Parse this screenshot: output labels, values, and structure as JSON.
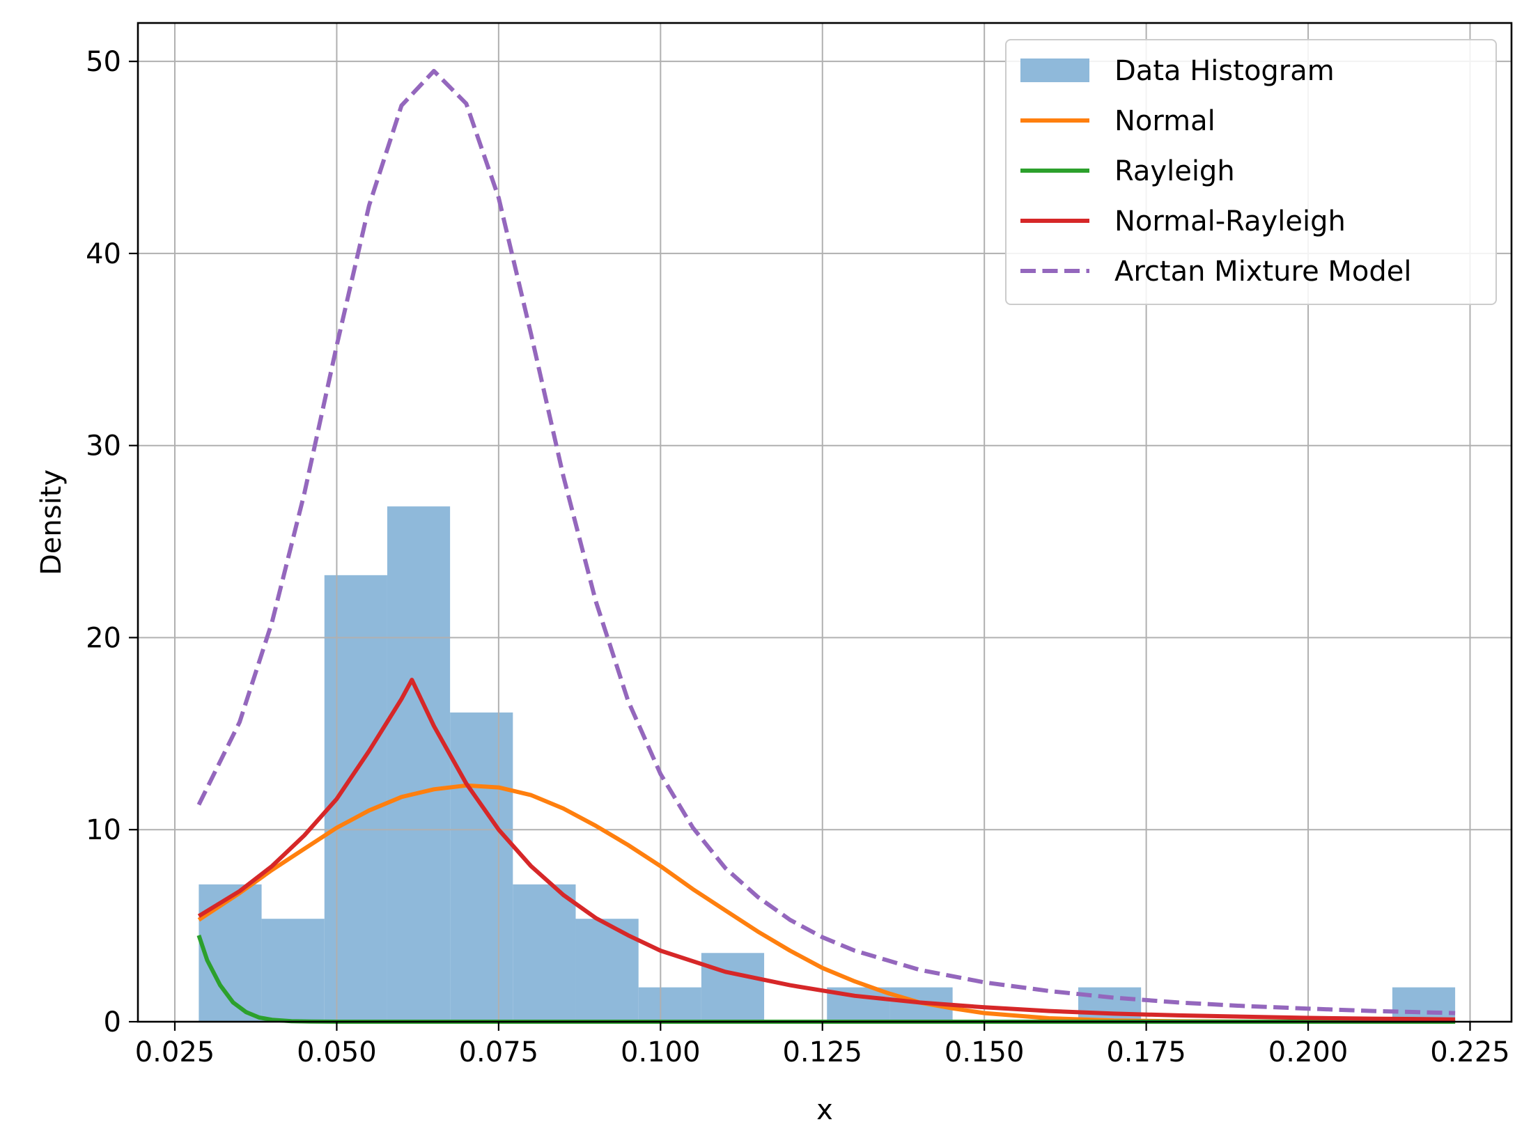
{
  "chart_data": {
    "type": "histogram",
    "title": "",
    "xlabel": "x",
    "ylabel": "Density",
    "xlim": [
      0.0193,
      0.2314
    ],
    "ylim": [
      0,
      52
    ],
    "x_ticks": [
      0.025,
      0.05,
      0.075,
      0.1,
      0.125,
      0.15,
      0.175,
      0.2,
      0.225
    ],
    "x_tick_labels": [
      "0.025",
      "0.050",
      "0.075",
      "0.100",
      "0.125",
      "0.150",
      "0.175",
      "0.200",
      "0.225"
    ],
    "y_ticks": [
      0,
      10,
      20,
      30,
      40,
      50
    ],
    "y_tick_labels": [
      "0",
      "10",
      "20",
      "30",
      "40",
      "50"
    ],
    "grid": true,
    "legend_position": "top-right",
    "histogram": {
      "name": "Data Histogram",
      "color": "#8fb9da",
      "bin_edges": [
        0.0287,
        0.0384,
        0.0481,
        0.0578,
        0.0675,
        0.0772,
        0.0869,
        0.0966,
        0.1063,
        0.116,
        0.1257,
        0.1354,
        0.1451,
        0.1548,
        0.1645,
        0.1742,
        0.1839,
        0.1936,
        0.2033,
        0.213,
        0.2227
      ],
      "densities": [
        7.15,
        5.36,
        23.25,
        26.83,
        16.1,
        7.15,
        5.36,
        1.79,
        3.58,
        0,
        1.79,
        1.79,
        0,
        0,
        1.79,
        0,
        0,
        0,
        0,
        1.79
      ]
    },
    "series": [
      {
        "name": "Normal",
        "color": "#ff7f0e",
        "style": "solid",
        "x": [
          0.0287,
          0.035,
          0.04,
          0.045,
          0.05,
          0.055,
          0.06,
          0.065,
          0.07,
          0.075,
          0.08,
          0.085,
          0.09,
          0.095,
          0.1,
          0.105,
          0.11,
          0.115,
          0.12,
          0.125,
          0.13,
          0.135,
          0.14,
          0.145,
          0.15,
          0.16,
          0.17,
          0.18,
          0.19,
          0.2,
          0.21,
          0.2227
        ],
        "y": [
          5.3,
          6.7,
          7.9,
          9.0,
          10.1,
          11.0,
          11.7,
          12.1,
          12.3,
          12.2,
          11.8,
          11.1,
          10.2,
          9.2,
          8.1,
          6.9,
          5.8,
          4.7,
          3.7,
          2.8,
          2.1,
          1.5,
          1.0,
          0.7,
          0.45,
          0.18,
          0.06,
          0.02,
          0.005,
          0.0,
          0.0,
          0.0
        ]
      },
      {
        "name": "Rayleigh",
        "color": "#2ca02c",
        "style": "solid",
        "x": [
          0.0287,
          0.03,
          0.032,
          0.034,
          0.036,
          0.038,
          0.04,
          0.043,
          0.046,
          0.05,
          0.06,
          0.08,
          0.1,
          0.15,
          0.2,
          0.2227
        ],
        "y": [
          4.5,
          3.2,
          1.9,
          1.0,
          0.5,
          0.22,
          0.1,
          0.03,
          0.01,
          0.0,
          0.0,
          0.0,
          0.0,
          0.0,
          0.0,
          0.0
        ]
      },
      {
        "name": "Normal-Rayleigh",
        "color": "#d62728",
        "style": "solid",
        "x": [
          0.0287,
          0.035,
          0.04,
          0.045,
          0.05,
          0.055,
          0.06,
          0.0616,
          0.065,
          0.07,
          0.075,
          0.08,
          0.085,
          0.09,
          0.095,
          0.1,
          0.11,
          0.12,
          0.13,
          0.14,
          0.15,
          0.16,
          0.17,
          0.18,
          0.19,
          0.2,
          0.21,
          0.2227
        ],
        "y": [
          5.5,
          6.8,
          8.1,
          9.7,
          11.6,
          14.1,
          16.8,
          17.8,
          15.4,
          12.4,
          10.0,
          8.1,
          6.6,
          5.4,
          4.5,
          3.7,
          2.6,
          1.9,
          1.35,
          1.0,
          0.75,
          0.56,
          0.42,
          0.33,
          0.26,
          0.2,
          0.16,
          0.12
        ]
      },
      {
        "name": "Arctan Mixture Model",
        "color": "#9467bd",
        "style": "dashed",
        "x": [
          0.0287,
          0.035,
          0.04,
          0.045,
          0.05,
          0.055,
          0.06,
          0.065,
          0.07,
          0.075,
          0.08,
          0.085,
          0.09,
          0.095,
          0.1,
          0.105,
          0.11,
          0.115,
          0.12,
          0.125,
          0.13,
          0.14,
          0.15,
          0.16,
          0.17,
          0.18,
          0.19,
          0.2,
          0.21,
          0.2227
        ],
        "y": [
          11.3,
          15.6,
          20.8,
          27.5,
          35.2,
          42.5,
          47.7,
          49.5,
          47.8,
          42.9,
          35.8,
          28.4,
          21.9,
          16.7,
          12.9,
          10.1,
          8.0,
          6.5,
          5.3,
          4.4,
          3.7,
          2.7,
          2.05,
          1.6,
          1.25,
          1.0,
          0.82,
          0.68,
          0.56,
          0.45
        ]
      }
    ]
  }
}
